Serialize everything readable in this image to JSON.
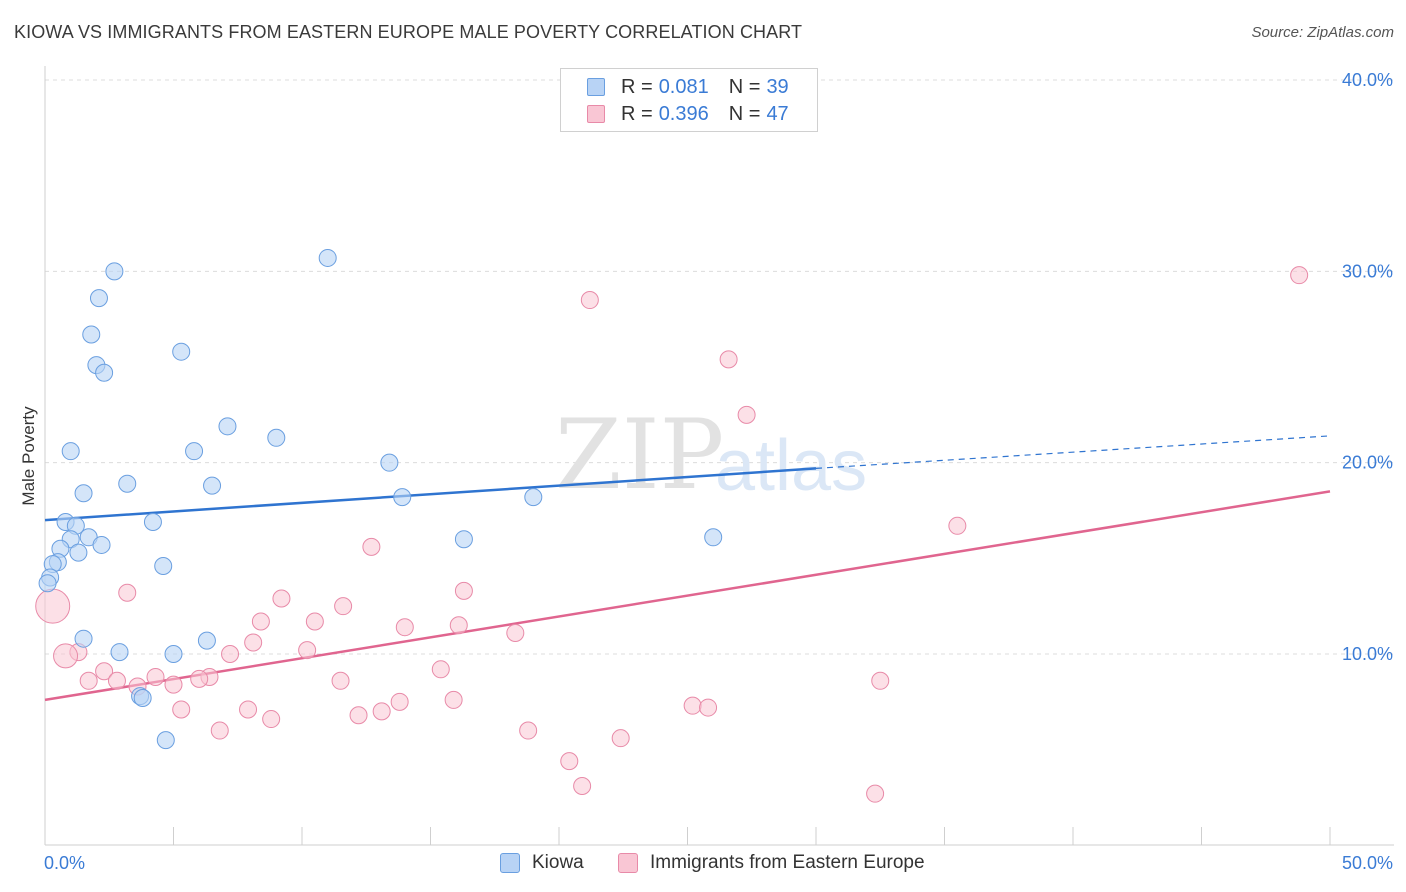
{
  "title": "KIOWA VS IMMIGRANTS FROM EASTERN EUROPE MALE POVERTY CORRELATION CHART",
  "source": "Source: ZipAtlas.com",
  "watermark": {
    "zip": "ZIP",
    "atlas": "atlas"
  },
  "legend": {
    "kiowa": {
      "r_label": "R =",
      "r_value": "0.081",
      "n_label": "N =",
      "n_value": "39"
    },
    "immigrants": {
      "r_label": "R =",
      "r_value": "0.396",
      "n_label": "N =",
      "n_value": "47"
    }
  },
  "colors": {
    "kiowa_fill": "#b8d3f5",
    "kiowa_stroke": "#6a9fe0",
    "kiowa_line": "#2f74d0",
    "imm_fill": "#f9c6d4",
    "imm_stroke": "#e88aa8",
    "imm_line": "#e0658f",
    "grid": "#dcdcdc",
    "axis_label": "#3a7bd5"
  },
  "chart_data": {
    "type": "scatter",
    "title": "KIOWA VS IMMIGRANTS FROM EASTERN EUROPE MALE POVERTY CORRELATION CHART",
    "xlabel": "",
    "ylabel": "Male Poverty",
    "xlim": [
      0,
      50
    ],
    "ylim": [
      0,
      41
    ],
    "x_tick_labels": [
      "0.0%",
      "50.0%"
    ],
    "y_ticks": [
      10,
      20,
      30,
      40
    ],
    "y_tick_labels": [
      "10.0%",
      "20.0%",
      "30.0%",
      "40.0%"
    ],
    "grid": true,
    "legend_position": "top-center",
    "series": [
      {
        "name": "Kiowa",
        "r": 0.081,
        "n": 39,
        "trend": {
          "x0": 0,
          "y0": 17.0,
          "x1": 30,
          "y1": 19.7,
          "dashed_to_x": 50,
          "dashed_to_y": 21.4
        },
        "points": [
          [
            2.7,
            30.0
          ],
          [
            11.0,
            30.7
          ],
          [
            2.1,
            28.6
          ],
          [
            1.8,
            26.7
          ],
          [
            5.3,
            25.8
          ],
          [
            2.0,
            25.1
          ],
          [
            2.3,
            24.7
          ],
          [
            7.1,
            21.9
          ],
          [
            9.0,
            21.3
          ],
          [
            1.0,
            20.6
          ],
          [
            5.8,
            20.6
          ],
          [
            13.4,
            20.0
          ],
          [
            3.2,
            18.9
          ],
          [
            6.5,
            18.8
          ],
          [
            1.5,
            18.4
          ],
          [
            13.9,
            18.2
          ],
          [
            19.0,
            18.2
          ],
          [
            0.8,
            16.9
          ],
          [
            4.2,
            16.9
          ],
          [
            1.2,
            16.7
          ],
          [
            1.7,
            16.1
          ],
          [
            1.0,
            16.0
          ],
          [
            26.0,
            16.1
          ],
          [
            16.3,
            16.0
          ],
          [
            2.2,
            15.7
          ],
          [
            0.6,
            15.5
          ],
          [
            1.3,
            15.3
          ],
          [
            0.5,
            14.8
          ],
          [
            4.6,
            14.6
          ],
          [
            0.3,
            14.7
          ],
          [
            0.2,
            14.0
          ],
          [
            0.1,
            13.7
          ],
          [
            1.5,
            10.8
          ],
          [
            6.3,
            10.7
          ],
          [
            2.9,
            10.1
          ],
          [
            5.0,
            10.0
          ],
          [
            3.7,
            7.8
          ],
          [
            3.8,
            7.7
          ],
          [
            4.7,
            5.5
          ]
        ]
      },
      {
        "name": "Immigrants from Eastern Europe",
        "r": 0.396,
        "n": 47,
        "trend": {
          "x0": 0,
          "y0": 7.6,
          "x1": 50,
          "y1": 18.5
        },
        "points": [
          [
            48.8,
            29.8
          ],
          [
            21.2,
            28.5
          ],
          [
            26.6,
            25.4
          ],
          [
            27.3,
            22.5
          ],
          [
            35.5,
            16.7
          ],
          [
            12.7,
            15.6
          ],
          [
            0.3,
            12.5
          ],
          [
            3.2,
            13.2
          ],
          [
            16.3,
            13.3
          ],
          [
            9.2,
            12.9
          ],
          [
            11.6,
            12.5
          ],
          [
            10.5,
            11.7
          ],
          [
            8.4,
            11.7
          ],
          [
            14.0,
            11.4
          ],
          [
            16.1,
            11.5
          ],
          [
            18.3,
            11.1
          ],
          [
            8.1,
            10.6
          ],
          [
            10.2,
            10.2
          ],
          [
            7.2,
            10.0
          ],
          [
            1.3,
            10.1
          ],
          [
            0.8,
            9.9
          ],
          [
            15.4,
            9.2
          ],
          [
            2.3,
            9.1
          ],
          [
            4.3,
            8.8
          ],
          [
            6.4,
            8.8
          ],
          [
            1.7,
            8.6
          ],
          [
            2.8,
            8.6
          ],
          [
            6.0,
            8.7
          ],
          [
            5.0,
            8.4
          ],
          [
            3.6,
            8.3
          ],
          [
            11.5,
            8.6
          ],
          [
            32.5,
            8.6
          ],
          [
            13.8,
            7.5
          ],
          [
            15.9,
            7.6
          ],
          [
            25.2,
            7.3
          ],
          [
            25.8,
            7.2
          ],
          [
            5.3,
            7.1
          ],
          [
            7.9,
            7.1
          ],
          [
            13.1,
            7.0
          ],
          [
            12.2,
            6.8
          ],
          [
            8.8,
            6.6
          ],
          [
            6.8,
            6.0
          ],
          [
            18.8,
            6.0
          ],
          [
            22.4,
            5.6
          ],
          [
            20.4,
            4.4
          ],
          [
            20.9,
            3.1
          ],
          [
            32.3,
            2.7
          ]
        ],
        "large_points": [
          [
            0.3,
            12.5
          ],
          [
            0.8,
            9.9
          ]
        ]
      }
    ]
  },
  "bottom_legend": {
    "kiowa": "Kiowa",
    "immigrants": "Immigrants from Eastern Europe"
  }
}
